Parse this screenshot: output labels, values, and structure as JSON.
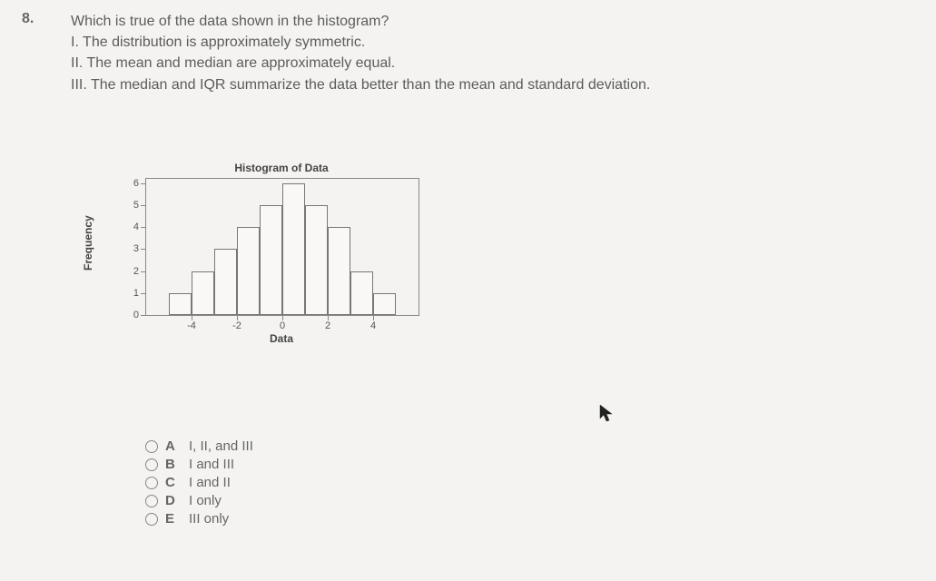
{
  "question": {
    "number": "8.",
    "stem": "Which is true of the data shown in the histogram?",
    "statements": [
      "I. The distribution is approximately symmetric.",
      "II. The mean and median are approximately equal.",
      "III. The median and IQR summarize the data better than the mean and standard deviation."
    ],
    "options": [
      {
        "letter": "A",
        "text": "I, II, and III"
      },
      {
        "letter": "B",
        "text": "I and III"
      },
      {
        "letter": "C",
        "text": "I and II"
      },
      {
        "letter": "D",
        "text": "I only"
      },
      {
        "letter": "E",
        "text": "III only"
      }
    ]
  },
  "chart": {
    "type": "histogram",
    "title": "Histogram of Data",
    "xlabel": "Data",
    "ylabel": "Frequency",
    "ylim": [
      0,
      6.2
    ],
    "yticks": [
      0,
      1,
      2,
      3,
      4,
      5,
      6
    ],
    "xlim": [
      -6,
      6
    ],
    "xticks": [
      -4,
      -2,
      0,
      2,
      4
    ],
    "bin_width": 1,
    "bin_starts": [
      -5,
      -4,
      -3,
      -2,
      -1,
      0,
      1,
      2,
      3,
      4
    ],
    "bin_heights": [
      1,
      2,
      3,
      4,
      5,
      6,
      5,
      4,
      2,
      1
    ],
    "bar_fill": "#f9f8f6",
    "bar_stroke": "#777777",
    "axis_color": "#888888",
    "background_color": "#f4f3f1",
    "font_family": "Verdana",
    "title_fontsize": 12,
    "label_fontsize": 12,
    "tick_fontsize": 11
  }
}
